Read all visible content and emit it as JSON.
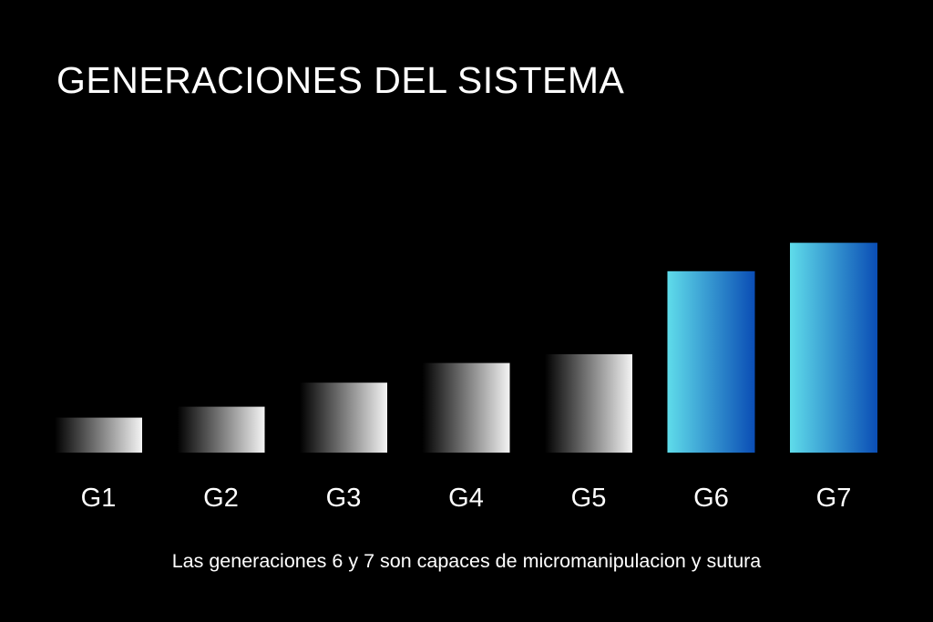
{
  "title": "GENERACIONES DEL SISTEMA",
  "caption": "Las generaciones 6 y 7 son capaces de micromanipulacion y sutura",
  "chart_data": {
    "type": "bar",
    "categories": [
      "G1",
      "G2",
      "G3",
      "G4",
      "G5",
      "G6",
      "G7"
    ],
    "values": [
      16,
      21,
      32,
      41,
      45,
      83,
      96
    ],
    "xlabel": "",
    "ylabel": "",
    "ylim": [
      0,
      100
    ],
    "grid": false,
    "legend": "none",
    "highlighted_categories": [
      "G6",
      "G7"
    ],
    "colors": {
      "background": "#000000",
      "text": "#ffffff",
      "gray_bar_light": "#f4f4f4",
      "gray_bar_dark": "#000000",
      "highlight_bar_light": "#5fdcea",
      "highlight_bar_dark": "#0a4db5"
    }
  }
}
